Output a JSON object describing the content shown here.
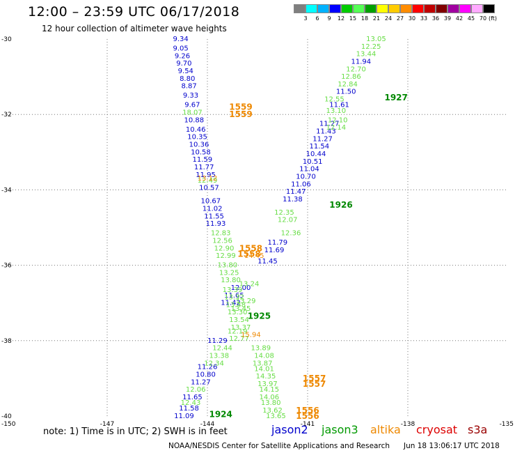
{
  "header": {
    "title": "12:00  –  23:59  UTC  06/17/2018",
    "subtitle": "12 hour collection of altimeter wave heights"
  },
  "colorbar": {
    "unit": "(ft)",
    "colors": [
      "#7f7f7f",
      "#00ffff",
      "#00b2ff",
      "#0000ff",
      "#00cc00",
      "#55ff55",
      "#00a000",
      "#ffff00",
      "#ffcc00",
      "#ff8c00",
      "#ff0000",
      "#c00000",
      "#800000",
      "#a000a0",
      "#ff00ff",
      "#ffaaff",
      "#000000"
    ],
    "labels": [
      "3",
      "6",
      "9",
      "12",
      "15",
      "18",
      "21",
      "24",
      "27",
      "30",
      "33",
      "36",
      "39",
      "42",
      "45",
      "70"
    ]
  },
  "chart_data": {
    "type": "scatter",
    "title": "12 hour collection of altimeter wave heights",
    "xlabel": "",
    "ylabel": "",
    "xlim": [
      -150,
      -135
    ],
    "ylim": [
      -40,
      -30
    ],
    "x_ticks": [
      "-150",
      "-147",
      "-144",
      "-141",
      "-138",
      "-135"
    ],
    "y_ticks": [
      "-30",
      "-32",
      "-34",
      "-36",
      "-38",
      "-40"
    ],
    "grid": "dotted",
    "units": "ft",
    "series": [
      {
        "name": "jason2",
        "color": "#0000cc",
        "points": [
          {
            "lat": -30.0,
            "lon": -144.8,
            "swh": "9.34"
          },
          {
            "lat": -30.25,
            "lon": -144.8,
            "swh": "9.05"
          },
          {
            "lat": -30.45,
            "lon": -144.75,
            "swh": "9.26"
          },
          {
            "lat": -30.65,
            "lon": -144.7,
            "swh": "9.70"
          },
          {
            "lat": -30.85,
            "lon": -144.65,
            "swh": "9.54"
          },
          {
            "lat": -31.05,
            "lon": -144.6,
            "swh": "8.80"
          },
          {
            "lat": -31.25,
            "lon": -144.55,
            "swh": "8.87"
          },
          {
            "lat": -31.5,
            "lon": -144.5,
            "swh": "9.33"
          },
          {
            "lat": -31.75,
            "lon": -144.45,
            "swh": "9.67"
          },
          {
            "lat": -32.15,
            "lon": -144.4,
            "swh": "10.88"
          },
          {
            "lat": -32.4,
            "lon": -144.35,
            "swh": "10.46"
          },
          {
            "lat": -32.6,
            "lon": -144.3,
            "swh": "10.35"
          },
          {
            "lat": -32.8,
            "lon": -144.25,
            "swh": "10.36"
          },
          {
            "lat": -33.0,
            "lon": -144.2,
            "swh": "10.58"
          },
          {
            "lat": -33.2,
            "lon": -144.15,
            "swh": "11.59"
          },
          {
            "lat": -33.4,
            "lon": -144.1,
            "swh": "11.77"
          },
          {
            "lat": -33.6,
            "lon": -144.05,
            "swh": "11.95"
          },
          {
            "lat": -33.95,
            "lon": -143.95,
            "swh": "10.57"
          },
          {
            "lat": -34.3,
            "lon": -143.9,
            "swh": "10.67"
          },
          {
            "lat": -34.5,
            "lon": -143.85,
            "swh": "11.02"
          },
          {
            "lat": -34.7,
            "lon": -143.8,
            "swh": "11.55"
          },
          {
            "lat": -34.9,
            "lon": -143.75,
            "swh": "11.93"
          },
          {
            "lat": -38.0,
            "lon": -143.7,
            "swh": "11.29"
          },
          {
            "lat": -38.7,
            "lon": -144.0,
            "swh": "11.26"
          },
          {
            "lat": -38.9,
            "lon": -144.05,
            "swh": "10.80"
          },
          {
            "lat": -39.1,
            "lon": -144.2,
            "swh": "11.27"
          },
          {
            "lat": -39.5,
            "lon": -144.45,
            "swh": "11.65"
          },
          {
            "lat": -39.8,
            "lon": -144.55,
            "swh": "11.58"
          },
          {
            "lat": -40.0,
            "lon": -144.7,
            "swh": "11.09"
          },
          {
            "lat": -37.0,
            "lon": -143.3,
            "swh": "11.42"
          },
          {
            "lat": -36.8,
            "lon": -143.2,
            "swh": "11.65"
          },
          {
            "lat": -36.6,
            "lon": -143.0,
            "swh": "12.00"
          },
          {
            "lat": -35.9,
            "lon": -142.2,
            "swh": "11.45"
          },
          {
            "lat": -35.6,
            "lon": -142.0,
            "swh": "11.69"
          },
          {
            "lat": -35.4,
            "lon": -141.9,
            "swh": "11.79"
          },
          {
            "lat": -34.25,
            "lon": -141.45,
            "swh": "11.38"
          },
          {
            "lat": -34.05,
            "lon": -141.35,
            "swh": "11.47"
          },
          {
            "lat": -33.85,
            "lon": -141.2,
            "swh": "11.06"
          },
          {
            "lat": -33.65,
            "lon": -141.05,
            "swh": "10.70"
          },
          {
            "lat": -33.45,
            "lon": -140.95,
            "swh": "11.04"
          },
          {
            "lat": -33.25,
            "lon": -140.85,
            "swh": "10.51"
          },
          {
            "lat": -33.05,
            "lon": -140.75,
            "swh": "10.44"
          },
          {
            "lat": -32.85,
            "lon": -140.65,
            "swh": "11.54"
          },
          {
            "lat": -32.65,
            "lon": -140.55,
            "swh": "11.27"
          },
          {
            "lat": -32.45,
            "lon": -140.45,
            "swh": "11.43"
          },
          {
            "lat": -32.25,
            "lon": -140.35,
            "swh": "11.27"
          },
          {
            "lat": -31.75,
            "lon": -140.05,
            "swh": "11.61"
          },
          {
            "lat": -31.4,
            "lon": -139.85,
            "swh": "11.50"
          },
          {
            "lat": -30.6,
            "lon": -139.4,
            "swh": "11.94"
          }
        ]
      },
      {
        "name": "jason3",
        "color": "#66dd44",
        "points": [
          {
            "lat": -31.95,
            "lon": -144.45,
            "swh": "18.07"
          },
          {
            "lat": -33.75,
            "lon": -144.0,
            "swh": "12.49"
          },
          {
            "lat": -35.15,
            "lon": -143.6,
            "swh": "12.83"
          },
          {
            "lat": -35.35,
            "lon": -143.55,
            "swh": "12.56"
          },
          {
            "lat": -35.55,
            "lon": -143.5,
            "swh": "12.90"
          },
          {
            "lat": -35.75,
            "lon": -143.45,
            "swh": "12.99"
          },
          {
            "lat": -36.0,
            "lon": -143.4,
            "swh": "13.80"
          },
          {
            "lat": -36.2,
            "lon": -143.35,
            "swh": "13.25"
          },
          {
            "lat": -36.4,
            "lon": -143.3,
            "swh": "13.80"
          },
          {
            "lat": -36.65,
            "lon": -143.25,
            "swh": "13.39"
          },
          {
            "lat": -36.85,
            "lon": -143.2,
            "swh": "13.32"
          },
          {
            "lat": -37.05,
            "lon": -143.15,
            "swh": "13.48"
          },
          {
            "lat": -37.25,
            "lon": -143.1,
            "swh": "13.30"
          },
          {
            "lat": -37.45,
            "lon": -143.05,
            "swh": "13.54"
          },
          {
            "lat": -37.65,
            "lon": -143.0,
            "swh": "13.37"
          },
          {
            "lat": -37.95,
            "lon": -143.05,
            "swh": "12.77"
          },
          {
            "lat": -37.75,
            "lon": -143.1,
            "swh": "12.19"
          },
          {
            "lat": -38.2,
            "lon": -143.55,
            "swh": "12.44"
          },
          {
            "lat": -38.4,
            "lon": -143.65,
            "swh": "13.38"
          },
          {
            "lat": -38.6,
            "lon": -143.8,
            "swh": "12.34"
          },
          {
            "lat": -39.3,
            "lon": -144.35,
            "swh": "12.06"
          },
          {
            "lat": -39.65,
            "lon": -144.5,
            "swh": "12.43"
          },
          {
            "lat": -36.5,
            "lon": -142.75,
            "swh": "13.24"
          },
          {
            "lat": -36.95,
            "lon": -142.85,
            "swh": "13.29"
          },
          {
            "lat": -37.15,
            "lon": -143.0,
            "swh": "13.45"
          },
          {
            "lat": -38.2,
            "lon": -142.4,
            "swh": "13.89"
          },
          {
            "lat": -38.4,
            "lon": -142.3,
            "swh": "14.08"
          },
          {
            "lat": -38.6,
            "lon": -142.35,
            "swh": "13.87"
          },
          {
            "lat": -38.75,
            "lon": -142.3,
            "swh": "14.01"
          },
          {
            "lat": -38.95,
            "lon": -142.25,
            "swh": "14.35"
          },
          {
            "lat": -39.15,
            "lon": -142.2,
            "swh": "13.97"
          },
          {
            "lat": -39.3,
            "lon": -142.15,
            "swh": "14.15"
          },
          {
            "lat": -39.5,
            "lon": -142.15,
            "swh": "14.06"
          },
          {
            "lat": -39.65,
            "lon": -142.1,
            "swh": "13.80"
          },
          {
            "lat": -39.85,
            "lon": -142.05,
            "swh": "13.62"
          },
          {
            "lat": -40.0,
            "lon": -141.95,
            "swh": "13.65"
          },
          {
            "lat": -34.6,
            "lon": -141.7,
            "swh": "12.35"
          },
          {
            "lat": -34.8,
            "lon": -141.6,
            "swh": "12.07"
          },
          {
            "lat": -35.15,
            "lon": -141.5,
            "swh": "12.36"
          },
          {
            "lat": -31.6,
            "lon": -140.2,
            "swh": "12.55"
          },
          {
            "lat": -31.9,
            "lon": -140.15,
            "swh": "13.10"
          },
          {
            "lat": -32.15,
            "lon": -140.1,
            "swh": "12.10"
          },
          {
            "lat": -32.35,
            "lon": -140.15,
            "swh": "12.14"
          },
          {
            "lat": -31.2,
            "lon": -139.8,
            "swh": "12.84"
          },
          {
            "lat": -31.0,
            "lon": -139.7,
            "swh": "12.86"
          },
          {
            "lat": -30.8,
            "lon": -139.55,
            "swh": "12.70"
          },
          {
            "lat": -30.4,
            "lon": -139.25,
            "swh": "13.44"
          },
          {
            "lat": -30.2,
            "lon": -139.1,
            "swh": "12.25"
          },
          {
            "lat": -30.0,
            "lon": -138.95,
            "swh": "13.05"
          }
        ]
      },
      {
        "name": "altika",
        "color": "#ee8800",
        "points": [
          {
            "lat": -33.7,
            "lon": -144.0,
            "swh": "13.12"
          },
          {
            "lat": -35.75,
            "lon": -142.6,
            "swh": "14.45"
          },
          {
            "lat": -37.85,
            "lon": -142.7,
            "swh": "15.94"
          }
        ]
      },
      {
        "name": "cryosat",
        "color": "#dd0000",
        "points": []
      },
      {
        "name": "s3a",
        "color": "#bb0000",
        "points": []
      }
    ],
    "pass_labels": [
      {
        "text": "1559",
        "lat": -31.8,
        "lon": -143.0,
        "color": "#ee8800"
      },
      {
        "text": "1559",
        "lat": -32.0,
        "lon": -143.0,
        "color": "#ee8800"
      },
      {
        "text": "1927",
        "lat": -31.55,
        "lon": -138.35,
        "color": "#008800"
      },
      {
        "text": "1926",
        "lat": -34.4,
        "lon": -140.0,
        "color": "#008800"
      },
      {
        "text": "1558",
        "lat": -35.55,
        "lon": -142.7,
        "color": "#ee8800"
      },
      {
        "text": "1558",
        "lat": -35.7,
        "lon": -142.75,
        "color": "#ee8800"
      },
      {
        "text": "1925",
        "lat": -37.35,
        "lon": -142.45,
        "color": "#008800"
      },
      {
        "text": "1557",
        "lat": -39.0,
        "lon": -140.8,
        "color": "#ee8800"
      },
      {
        "text": "1557",
        "lat": -39.15,
        "lon": -140.8,
        "color": "#ee8800"
      },
      {
        "text": "1556",
        "lat": -39.85,
        "lon": -141.0,
        "color": "#ee8800"
      },
      {
        "text": "1556",
        "lat": -40.0,
        "lon": -141.0,
        "color": "#ee8800"
      },
      {
        "text": "1924",
        "lat": -39.95,
        "lon": -143.6,
        "color": "#008800"
      }
    ]
  },
  "footer": {
    "note": "note:  1) Time is in UTC;  2) SWH is in feet",
    "legend": [
      {
        "label": "jason2",
        "color": "#0000cc"
      },
      {
        "label": "jason3",
        "color": "#009900"
      },
      {
        "label": "altika",
        "color": "#ee8800"
      },
      {
        "label": "cryosat",
        "color": "#dd0000"
      },
      {
        "label": "s3a",
        "color": "#990000"
      }
    ],
    "credit": "NOAA/NESDIS Center for Satellite Applications and Research",
    "timestamp": "Jun 18 13:06:17 UTC 2018"
  }
}
